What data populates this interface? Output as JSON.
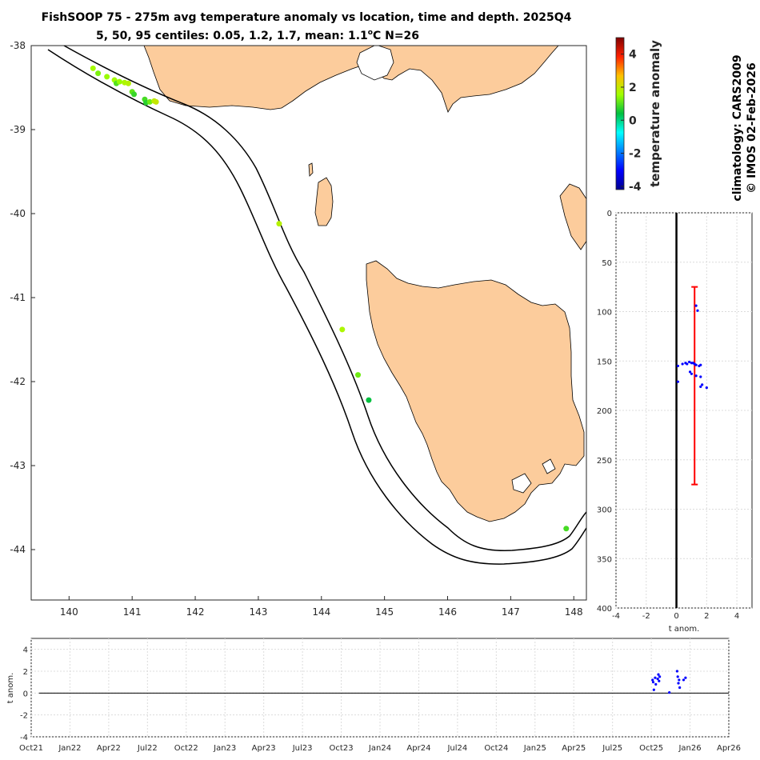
{
  "title": {
    "line1": "FishSOOP 75 - 275m avg temperature anomaly vs location, time and depth. 2025Q4",
    "line2_prefix": "5, 50, 95 centiles: 0.05, 1.2, 1.7, mean: 1.1",
    "line2_sup": "o",
    "line2_suffix": "C N=26"
  },
  "side_text": {
    "line1": "climatology: CARS2009",
    "line2": "© IMOS 02-Feb-2026"
  },
  "colors": {
    "land": "#fccc9c",
    "line": "#000000",
    "obs": "#0000ff",
    "range": "#ff0000",
    "grid": "#dcdcdc"
  },
  "chart_data": [
    {
      "type": "scatter",
      "name": "map",
      "xlim": [
        139.4,
        148.2
      ],
      "ylim": [
        -44.6,
        -38
      ],
      "xticks": [
        140,
        141,
        142,
        143,
        144,
        145,
        146,
        147,
        148
      ],
      "yticks": [
        -38,
        -39,
        -40,
        -41,
        -42,
        -43,
        -44
      ],
      "points": [
        {
          "lon": 140.38,
          "lat": -38.27,
          "anom": 1.6
        },
        {
          "lon": 140.46,
          "lat": -38.33,
          "anom": 1.3
        },
        {
          "lon": 140.6,
          "lat": -38.37,
          "anom": 1.5
        },
        {
          "lon": 140.72,
          "lat": -38.41,
          "anom": 1.6
        },
        {
          "lon": 140.75,
          "lat": -38.45,
          "anom": 1.0
        },
        {
          "lon": 140.8,
          "lat": -38.43,
          "anom": 1.5
        },
        {
          "lon": 140.88,
          "lat": -38.44,
          "anom": 1.7
        },
        {
          "lon": 140.94,
          "lat": -38.45,
          "anom": 1.8
        },
        {
          "lon": 141.0,
          "lat": -38.55,
          "anom": 1.1
        },
        {
          "lon": 141.03,
          "lat": -38.58,
          "anom": 0.8
        },
        {
          "lon": 141.2,
          "lat": -38.64,
          "anom": 0.9
        },
        {
          "lon": 141.22,
          "lat": -38.68,
          "anom": 0.7
        },
        {
          "lon": 141.28,
          "lat": -38.67,
          "anom": 1.2
        },
        {
          "lon": 141.35,
          "lat": -38.66,
          "anom": 1.9
        },
        {
          "lon": 141.38,
          "lat": -38.67,
          "anom": 2.0
        },
        {
          "lon": 143.33,
          "lat": -40.12,
          "anom": 1.8
        },
        {
          "lon": 144.33,
          "lat": -41.38,
          "anom": 1.7
        },
        {
          "lon": 144.58,
          "lat": -41.92,
          "anom": 1.2
        },
        {
          "lon": 144.75,
          "lat": -42.22,
          "anom": 0.4
        },
        {
          "lon": 147.88,
          "lat": -43.75,
          "anom": 0.9
        }
      ]
    },
    {
      "type": "scatter",
      "name": "depth-profile",
      "xlabel": "t anom.",
      "xlim": [
        -4,
        5
      ],
      "ylim": [
        400,
        0
      ],
      "xticks": [
        -4,
        -2,
        0,
        2,
        4
      ],
      "yticks": [
        0,
        50,
        100,
        150,
        200,
        250,
        300,
        350,
        400
      ],
      "depth_range": {
        "anom": 1.2,
        "top": 75,
        "bottom": 275
      },
      "points": [
        {
          "anom": 1.3,
          "depth": 94
        },
        {
          "anom": 1.4,
          "depth": 99
        },
        {
          "anom": 0.1,
          "depth": 155
        },
        {
          "anom": 0.4,
          "depth": 153
        },
        {
          "anom": 0.6,
          "depth": 152
        },
        {
          "anom": 0.7,
          "depth": 153
        },
        {
          "anom": 0.85,
          "depth": 151
        },
        {
          "anom": 1.0,
          "depth": 152
        },
        {
          "anom": 1.1,
          "depth": 152
        },
        {
          "anom": 1.2,
          "depth": 153
        },
        {
          "anom": 1.3,
          "depth": 154
        },
        {
          "anom": 1.5,
          "depth": 155
        },
        {
          "anom": 1.6,
          "depth": 154
        },
        {
          "anom": 0.9,
          "depth": 161
        },
        {
          "anom": 1.0,
          "depth": 163
        },
        {
          "anom": 1.3,
          "depth": 165
        },
        {
          "anom": 1.6,
          "depth": 166
        },
        {
          "anom": 0.1,
          "depth": 171
        },
        {
          "anom": 1.7,
          "depth": 174
        },
        {
          "anom": 1.6,
          "depth": 176
        },
        {
          "anom": 2.0,
          "depth": 177
        }
      ]
    },
    {
      "type": "scatter",
      "name": "time-series",
      "ylabel": "t anom.",
      "ylim": [
        -4,
        5
      ],
      "yticks": [
        -4,
        -2,
        0,
        2,
        4
      ],
      "xtick_labels": [
        "Oct21",
        "Jan22",
        "Apr22",
        "Jul22",
        "Oct22",
        "Jan23",
        "Apr23",
        "Jul23",
        "Oct23",
        "Jan24",
        "Apr24",
        "Jul24",
        "Oct24",
        "Jan25",
        "Apr25",
        "Jul25",
        "Oct25",
        "Jan26",
        "Apr26"
      ],
      "points": [
        {
          "month": 48.1,
          "anom": 1.2
        },
        {
          "month": 48.15,
          "anom": 1.0
        },
        {
          "month": 48.2,
          "anom": 0.3
        },
        {
          "month": 48.3,
          "anom": 1.4
        },
        {
          "month": 48.35,
          "anom": 0.8
        },
        {
          "month": 48.5,
          "anom": 1.3
        },
        {
          "month": 48.55,
          "anom": 1.7
        },
        {
          "month": 48.6,
          "anom": 1.1
        },
        {
          "month": 48.65,
          "anom": 1.5
        },
        {
          "month": 49.4,
          "anom": 0.05
        },
        {
          "month": 50.0,
          "anom": 2.0
        },
        {
          "month": 50.05,
          "anom": 1.5
        },
        {
          "month": 50.1,
          "anom": 0.9
        },
        {
          "month": 50.15,
          "anom": 1.2
        },
        {
          "month": 50.2,
          "anom": 0.5
        },
        {
          "month": 50.5,
          "anom": 1.2
        },
        {
          "month": 50.65,
          "anom": 1.4
        }
      ]
    }
  ],
  "colorbar": {
    "label": "temperature anomaly",
    "range": [
      -4.2,
      5
    ],
    "ticks": [
      -4,
      -2,
      0,
      2,
      4
    ]
  }
}
